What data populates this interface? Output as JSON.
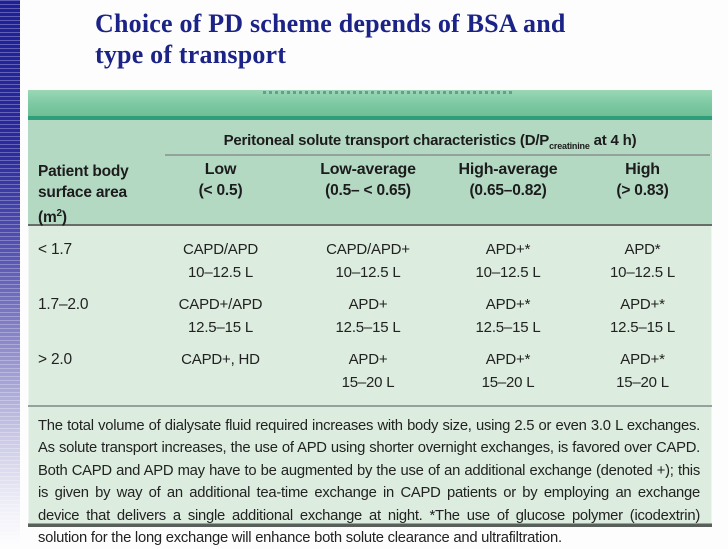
{
  "slide": {
    "title_line1": "Choice of PD scheme depends of BSA and",
    "title_line2": "type of transport",
    "title_color": "#1b2387"
  },
  "table": {
    "span_header": {
      "prefix": "Peritoneal solute transport characteristics (D/P",
      "subscript": "creatinine",
      "suffix": " at 4 h)"
    },
    "row_header": {
      "line1": "Patient body",
      "line2_pre": "surface area (m",
      "line2_sup": "2",
      "line2_post": ")"
    },
    "columns": [
      {
        "label": "Low",
        "range": "(< 0.5)"
      },
      {
        "label": "Low-average",
        "range": "(0.5– < 0.65)"
      },
      {
        "label": "High-average",
        "range": "(0.65–0.82)"
      },
      {
        "label": "High",
        "range": "(> 0.83)"
      }
    ],
    "rows": [
      {
        "bsa": "< 1.7",
        "cells": [
          {
            "scheme": "CAPD/APD",
            "volume": "10–12.5 L"
          },
          {
            "scheme": "CAPD/APD+",
            "volume": "10–12.5 L"
          },
          {
            "scheme": "APD+*",
            "volume": "10–12.5 L"
          },
          {
            "scheme": "APD*",
            "volume": "10–12.5 L"
          }
        ]
      },
      {
        "bsa": "1.7–2.0",
        "cells": [
          {
            "scheme": "CAPD+/APD",
            "volume": "12.5–15 L"
          },
          {
            "scheme": "APD+",
            "volume": "12.5–15 L"
          },
          {
            "scheme": "APD+*",
            "volume": "12.5–15 L"
          },
          {
            "scheme": "APD+*",
            "volume": "12.5–15 L"
          }
        ]
      },
      {
        "bsa": "> 2.0",
        "cells": [
          {
            "scheme": "CAPD+, HD",
            "volume": ""
          },
          {
            "scheme": "APD+",
            "volume": "15–20 L"
          },
          {
            "scheme": "APD+*",
            "volume": "15–20 L"
          },
          {
            "scheme": "APD+*",
            "volume": "15–20 L"
          }
        ]
      }
    ],
    "footnote": "The total volume of dialysate fluid required increases with body size, using 2.5 or even 3.0 L exchanges. As solute transport increases, the use of APD using shorter overnight exchanges, is favored over CAPD. Both CAPD and APD may have to be augmented by the use of an additional exchange (denoted +); this is given by way of an additional tea-time exchange in CAPD patients or by employing an exchange device that delivers a single additional exchange at night. *The use of glucose polymer (icodextrin) solution for the long exchange will enhance both solute clearance and ultrafiltration.",
    "colors": {
      "top_bar": "#7cc8a2",
      "top_bar_accent": "#2f9e7b",
      "header_bg": "#b4d9c3",
      "body_bg": "#dcecde",
      "rule_gray": "#93a29a",
      "rule_dark": "#595f5a"
    }
  }
}
